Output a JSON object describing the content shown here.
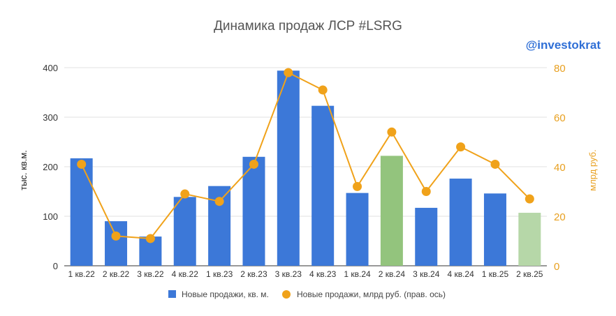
{
  "chart_data": {
    "type": "bar",
    "title": "Динамика продаж ЛСР #LSRG",
    "watermark": "@investokrat",
    "categories": [
      "1 кв.22",
      "2 кв.22",
      "3 кв.22",
      "4 кв.22",
      "1 кв.23",
      "2 кв.23",
      "3 кв.23",
      "4 кв.23",
      "1 кв.24",
      "2 кв.24",
      "3 кв.24",
      "4 кв.24",
      "1 кв.25",
      "2 кв.25"
    ],
    "series": [
      {
        "name": "Новые продажи, кв. м.",
        "type": "bar",
        "axis": "left",
        "color": "#3c78d8",
        "values": [
          217,
          90,
          59,
          139,
          161,
          220,
          394,
          323,
          147,
          222,
          117,
          176,
          146,
          107
        ],
        "highlight_colors": {
          "9": "#93c47d",
          "13": "#b6d7a8"
        }
      },
      {
        "name": "Новые продажи, млрд руб. (прав. ось)",
        "type": "line",
        "axis": "right",
        "color": "#f0a21a",
        "values": [
          41,
          12,
          11,
          29,
          26,
          41,
          78,
          71,
          32,
          54,
          30,
          48,
          41,
          27
        ]
      }
    ],
    "ylabel": "тыс. кв.м.",
    "y2label": "млрд руб.",
    "ylim": [
      0,
      400
    ],
    "y2lim": [
      0,
      80
    ],
    "yticks": [
      "0",
      "100",
      "200",
      "300",
      "400"
    ],
    "y2ticks": [
      "0",
      "20",
      "40",
      "60",
      "80"
    ],
    "grid": true,
    "legend_position": "bottom"
  }
}
